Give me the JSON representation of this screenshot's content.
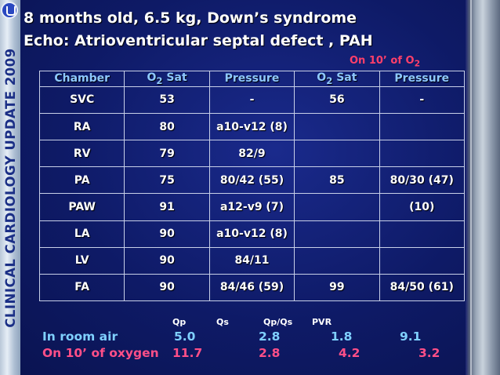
{
  "side_label": "CLINICAL CARDIOLOGY UPDATE 2009",
  "title": "8 months old, 6.5 kg, Down’s syndrome",
  "subtitle": "Echo: Atrioventricular septal defect , PAH",
  "o2_note": {
    "prefix": "On 10’ of O",
    "sub": "2"
  },
  "table": {
    "headers": [
      {
        "text": "Chamber"
      },
      {
        "text": "O",
        "sub": "2",
        "suffix": " Sat"
      },
      {
        "text": "Pressure"
      },
      {
        "text": "O",
        "sub": "2",
        "suffix": " Sat"
      },
      {
        "text": "Pressure"
      }
    ],
    "rows": [
      [
        "SVC",
        "53",
        "-",
        "56",
        "-"
      ],
      [
        "RA",
        "80",
        "a10-v12 (8)",
        "",
        ""
      ],
      [
        "RV",
        "79",
        "82/9",
        "",
        ""
      ],
      [
        "PA",
        "75",
        "80/42 (55)",
        "85",
        "80/30 (47)"
      ],
      [
        "PAW",
        "91",
        "a12-v9 (7)",
        "",
        "(10)"
      ],
      [
        "LA",
        "90",
        "a10-v12 (8)",
        "",
        ""
      ],
      [
        "LV",
        "90",
        "84/11",
        "",
        ""
      ],
      [
        "FA",
        "90",
        "84/46 (59)",
        "99",
        "84/50 (61)"
      ]
    ]
  },
  "summary": {
    "headers": [
      "Qp",
      "Qs",
      "Qp/Qs",
      "PVR"
    ],
    "room_air": {
      "label": "In room air",
      "values": [
        "5.0",
        "2.8",
        "1.8",
        "9.1"
      ]
    },
    "oxygen": {
      "label": "On 10’ of oxygen",
      "values": [
        "11.7",
        "2.8",
        "4.2",
        "3.2"
      ]
    }
  },
  "colors": {
    "background": "#0e1a66",
    "header_text": "#8ec8ff",
    "room_air": "#7fd0ff",
    "oxygen": "#ff4f88",
    "note": "#ff3f6a"
  }
}
